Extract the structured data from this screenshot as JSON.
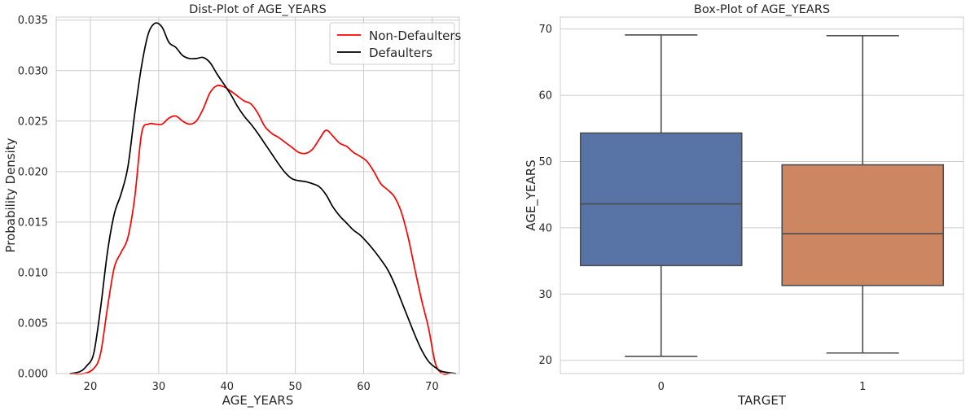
{
  "chart_data": [
    {
      "type": "line",
      "title": "Dist-Plot of AGE_YEARS",
      "xlabel": "AGE_YEARS",
      "ylabel": "Probability Density",
      "xlim": [
        15,
        74
      ],
      "ylim": [
        0,
        0.0353
      ],
      "xticks": [
        20,
        30,
        40,
        50,
        60,
        70
      ],
      "yticks": [
        0.0,
        0.005,
        0.01,
        0.015,
        0.02,
        0.025,
        0.03,
        0.035
      ],
      "ytick_labels": [
        "0.000",
        "0.005",
        "0.010",
        "0.015",
        "0.020",
        "0.025",
        "0.030",
        "0.035"
      ],
      "grid": true,
      "legend": "top-right",
      "series": [
        {
          "name": "Non-Defaulters",
          "color": "#ff0000",
          "x": [
            17,
            19,
            20.5,
            21.5,
            22.5,
            23.5,
            24.5,
            25.5,
            26.5,
            27.5,
            28.5,
            29.5,
            30.5,
            31.5,
            32.5,
            33.5,
            34.5,
            35.5,
            36.5,
            37.5,
            38.5,
            39.5,
            40.5,
            41.5,
            42.5,
            43.5,
            44.5,
            45.5,
            46.5,
            47.5,
            48.5,
            49.5,
            50.5,
            51.5,
            52.5,
            53.5,
            54.5,
            55.5,
            56.5,
            57.5,
            58.5,
            59.5,
            60.5,
            61.5,
            62.5,
            63.5,
            64.5,
            65.5,
            66.5,
            67.5,
            68.5,
            69.5,
            70.5,
            71.5,
            72.5
          ],
          "y": [
            0.0,
            0.0,
            0.0005,
            0.002,
            0.0065,
            0.0105,
            0.012,
            0.0135,
            0.0175,
            0.0238,
            0.0247,
            0.0247,
            0.0247,
            0.0253,
            0.0255,
            0.025,
            0.0247,
            0.025,
            0.0262,
            0.0278,
            0.0285,
            0.0284,
            0.028,
            0.0275,
            0.027,
            0.0267,
            0.0258,
            0.0245,
            0.0238,
            0.0234,
            0.0229,
            0.0224,
            0.0219,
            0.0218,
            0.0222,
            0.0232,
            0.0241,
            0.0235,
            0.0228,
            0.0225,
            0.0219,
            0.0215,
            0.021,
            0.02,
            0.0188,
            0.0182,
            0.0175,
            0.016,
            0.0135,
            0.0103,
            0.0072,
            0.0045,
            0.001,
            0.0,
            0.0
          ]
        },
        {
          "name": "Defaulters",
          "color": "#000000",
          "x": [
            17,
            18.5,
            19.5,
            20.5,
            21.5,
            22.5,
            23.5,
            24.5,
            25.5,
            26.5,
            27.5,
            28.5,
            29.5,
            30.5,
            31.5,
            32.5,
            33.5,
            34.5,
            35.5,
            36.5,
            37.5,
            38.5,
            39.5,
            40.5,
            41.5,
            42.5,
            43.5,
            44.5,
            45.5,
            46.5,
            47.5,
            48.5,
            49.5,
            50.5,
            51.5,
            52.5,
            53.5,
            54.5,
            55.5,
            56.5,
            57.5,
            58.5,
            59.5,
            60.5,
            61.5,
            62.5,
            63.5,
            64.5,
            65.5,
            66.5,
            67.5,
            68.5,
            69.5,
            70.5,
            71.5,
            73.5
          ],
          "y": [
            0.0,
            0.0002,
            0.0008,
            0.002,
            0.0065,
            0.012,
            0.0158,
            0.0178,
            0.0205,
            0.0258,
            0.0305,
            0.0337,
            0.0347,
            0.0343,
            0.0328,
            0.0323,
            0.0315,
            0.0312,
            0.0312,
            0.0313,
            0.0308,
            0.0297,
            0.0287,
            0.0277,
            0.0265,
            0.0255,
            0.0247,
            0.0238,
            0.0228,
            0.0218,
            0.0208,
            0.0199,
            0.0193,
            0.0191,
            0.019,
            0.0188,
            0.0185,
            0.0177,
            0.0165,
            0.0156,
            0.0149,
            0.0142,
            0.0137,
            0.013,
            0.0122,
            0.0113,
            0.0103,
            0.0089,
            0.0072,
            0.0055,
            0.0038,
            0.0023,
            0.0012,
            0.0006,
            0.0002,
            0.0
          ]
        }
      ]
    },
    {
      "type": "box",
      "title": "Box-Plot of AGE_YEARS",
      "xlabel": "TARGET",
      "ylabel": "AGE_YEARS",
      "categories": [
        "0",
        "1"
      ],
      "ylim": [
        18,
        71.8
      ],
      "yticks": [
        20,
        30,
        40,
        50,
        60,
        70
      ],
      "grid": true,
      "boxes": [
        {
          "category": "0",
          "color": "#5874a6",
          "whisker_low": 20.6,
          "q1": 34.3,
          "median": 43.6,
          "q3": 54.3,
          "whisker_high": 69.1
        },
        {
          "category": "1",
          "color": "#cc8762",
          "whisker_low": 21.1,
          "q1": 31.3,
          "median": 39.1,
          "q3": 49.5,
          "whisker_high": 69.0
        }
      ]
    }
  ]
}
